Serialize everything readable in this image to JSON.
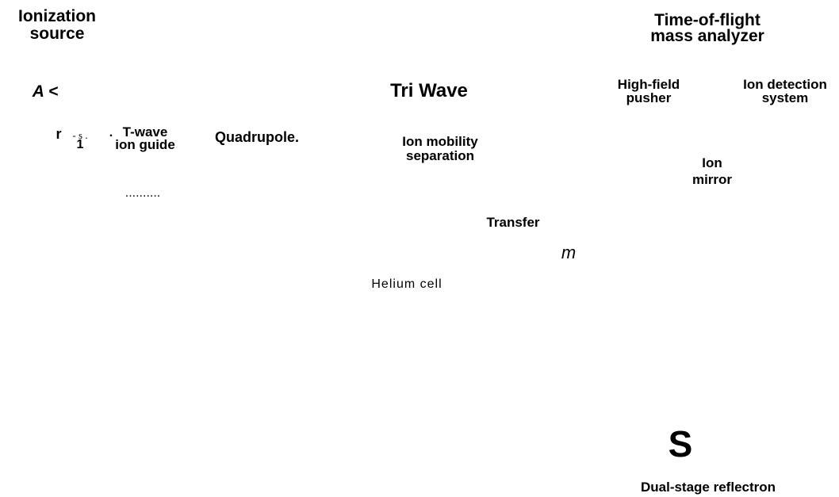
{
  "ionization_source": [
    "Ionization",
    "source"
  ],
  "tof_analyzer": [
    "Time-of-flight",
    "mass analyzer"
  ],
  "marker_a": "A <",
  "triwave": "Tri Wave",
  "pusher": [
    "High-field",
    "pusher"
  ],
  "detection": [
    "Ion detection",
    "system"
  ],
  "tw_fragments": [
    "r",
    "- s .",
    ".",
    "1"
  ],
  "tw_ion_guide": [
    "T-wave",
    "ion guide"
  ],
  "dots": "..........",
  "quadrupole": "Quadrupole.",
  "ion_mobility": [
    "Ion mobility",
    "separation"
  ],
  "ion_mirror": [
    "Ion",
    "mirror"
  ],
  "transfer": "Transfer",
  "m_label": "m",
  "helium_cell": "Helium cell",
  "s_label": "S",
  "reflectron": "Dual-stage reflectron"
}
